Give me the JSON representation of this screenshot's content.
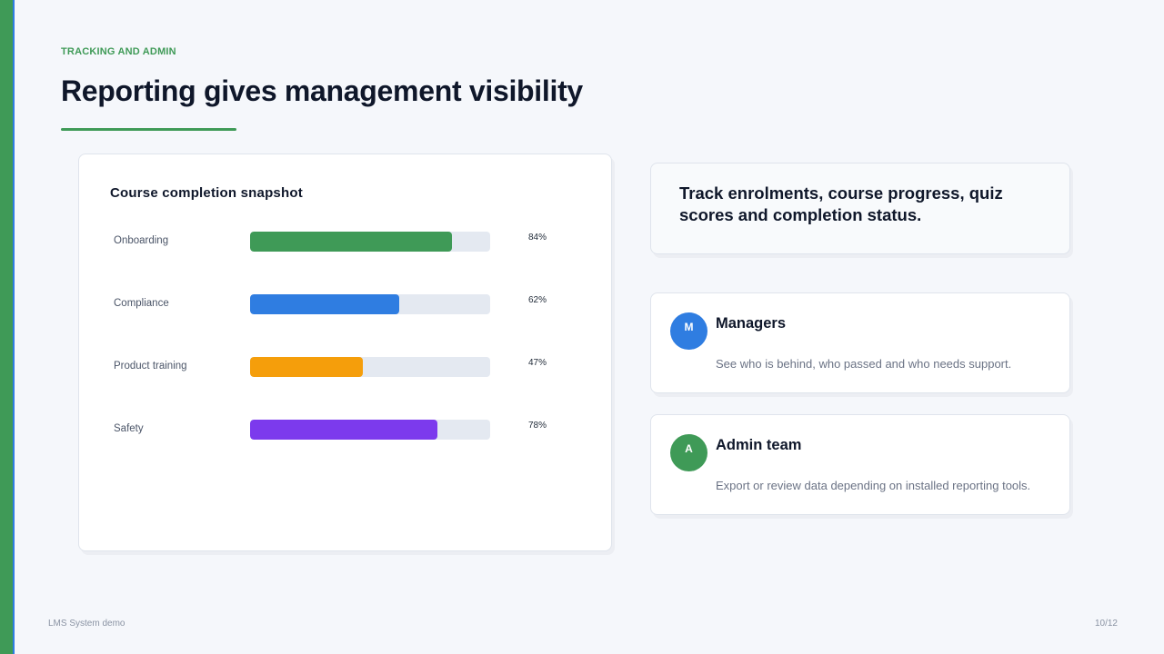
{
  "header": {
    "eyebrow": "TRACKING AND ADMIN",
    "title": "Reporting gives management visibility"
  },
  "chart": {
    "title": "Course completion snapshot"
  },
  "chart_data": {
    "type": "bar",
    "orientation": "horizontal",
    "title": "Course completion snapshot",
    "categories": [
      "Onboarding",
      "Compliance",
      "Product training",
      "Safety"
    ],
    "values": [
      84,
      62,
      47,
      78
    ],
    "value_labels": [
      "84%",
      "62%",
      "47%",
      "78%"
    ],
    "colors": [
      "#3f9a57",
      "#2f7de1",
      "#f59e0b",
      "#7c3aed"
    ],
    "xlim": [
      0,
      100
    ],
    "grid": false
  },
  "highlight": {
    "text": "Track enrolments, course progress, quiz scores and completion status."
  },
  "people": [
    {
      "initial": "M",
      "name": "Managers",
      "description": "See who is behind, who passed and who needs support.",
      "color": "#2f7de1"
    },
    {
      "initial": "A",
      "name": "Admin team",
      "description": "Export or review data depending on installed reporting tools.",
      "color": "#3f9a57"
    }
  ],
  "footer": {
    "left": "LMS System demo",
    "right": "10/12"
  },
  "theme": {
    "accent": "#3f9a57",
    "secondary": "#2f7de1"
  }
}
